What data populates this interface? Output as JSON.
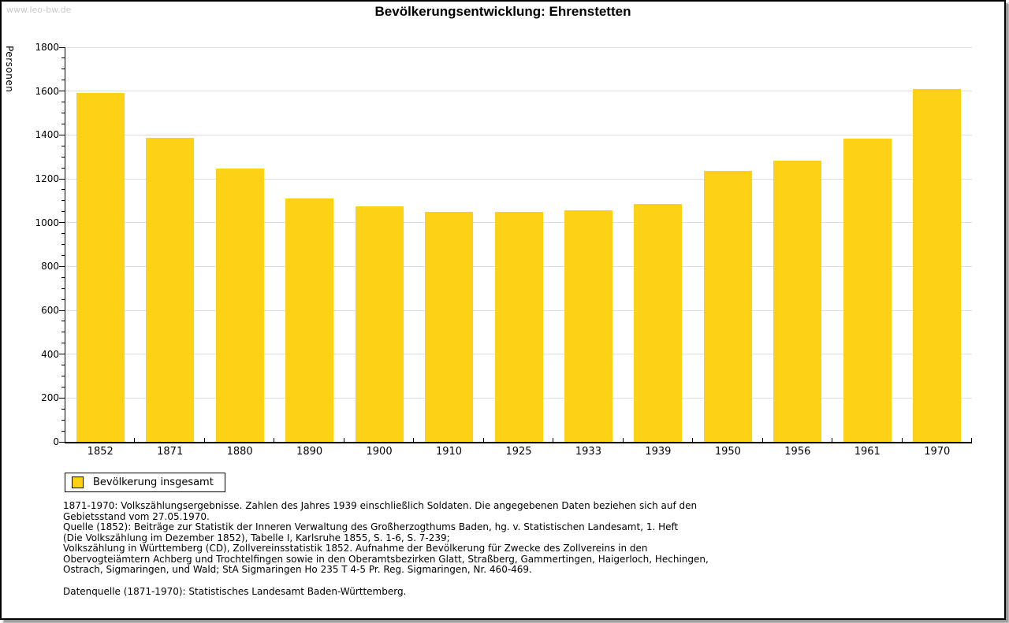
{
  "watermark": "www.leo-bw.de",
  "title": "Bevölkerungsentwicklung: Ehrenstetten",
  "chart_data": {
    "type": "bar",
    "title": "Bevölkerungsentwicklung: Ehrenstetten",
    "ylabel": "Personen",
    "xlabel": "",
    "categories": [
      "1852",
      "1871",
      "1880",
      "1890",
      "1900",
      "1910",
      "1925",
      "1933",
      "1939",
      "1950",
      "1956",
      "1961",
      "1970"
    ],
    "values": [
      1593,
      1387,
      1248,
      1112,
      1073,
      1050,
      1050,
      1058,
      1086,
      1235,
      1284,
      1385,
      1611
    ],
    "ylim": [
      0,
      1800
    ],
    "ytick_step": 200,
    "y_minor_step": 50,
    "grid": "horizontal-major",
    "legend_position": "bottom-left",
    "legend": [
      "Bevölkerung insgesamt"
    ]
  },
  "legend": {
    "label": "Bevölkerung insgesamt",
    "swatch_color": "#FCD116"
  },
  "colors": {
    "bar": "#FCD116",
    "grid": "#DDDDDD",
    "axis": "#000000",
    "watermark": "#C8C8C8"
  },
  "footer": {
    "lines": [
      "1871-1970: Volkszählungsergebnisse. Zahlen des Jahres 1939 einschließlich Soldaten. Die angegebenen Daten beziehen sich auf den",
      "Gebietsstand vom 27.05.1970.",
      "Quelle (1852): Beiträge zur Statistik der Inneren Verwaltung des Großherzogthums Baden, hg. v. Statistischen Landesamt, 1. Heft",
      "(Die Volkszählung im Dezember 1852), Tabelle I, Karlsruhe 1855, S. 1-6, S. 7-239;",
      "Volkszählung in Württemberg (CD), Zollvereinsstatistik 1852. Aufnahme der Bevölkerung für Zwecke des Zollvereins in den",
      "Obervogteiämtern Achberg und Trochtelfingen sowie in den Oberamtsbezirken Glatt, Straßberg, Gammertingen, Haigerloch, Hechingen,",
      "Ostrach, Sigmaringen, und Wald; StA Sigmaringen Ho 235 T 4-5 Pr. Reg. Sigmaringen, Nr. 460-469."
    ],
    "datasource": "Datenquelle (1871-1970): Statistisches Landesamt Baden-Württemberg."
  }
}
